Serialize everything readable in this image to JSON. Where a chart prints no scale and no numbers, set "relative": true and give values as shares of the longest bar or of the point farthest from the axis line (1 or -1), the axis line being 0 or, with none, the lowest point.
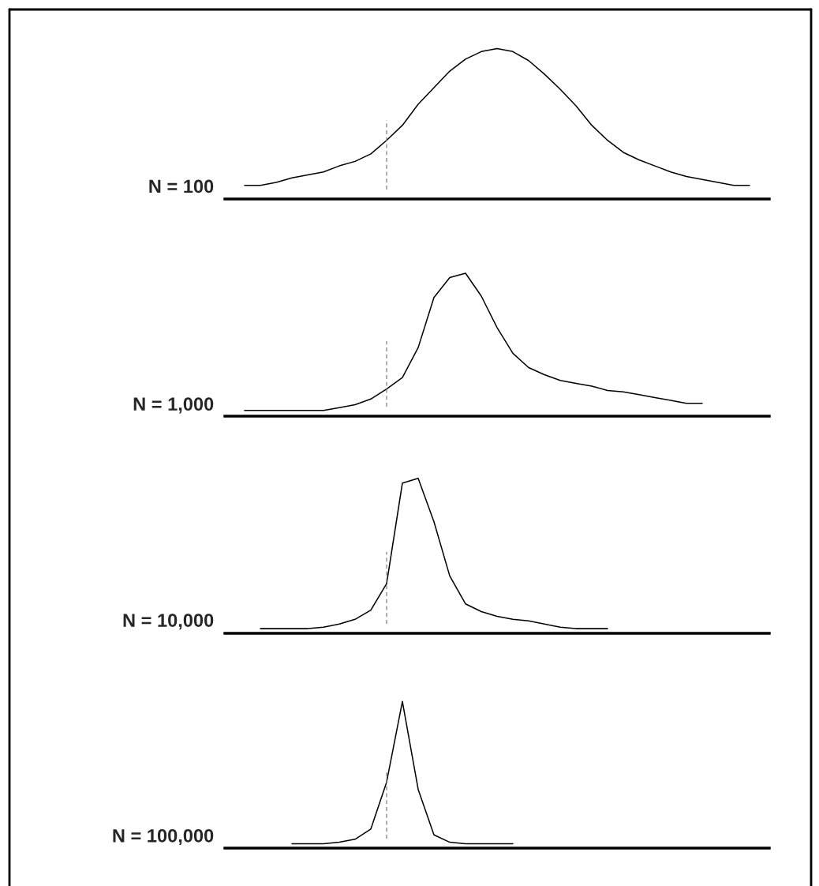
{
  "chart_data": [
    {
      "type": "line",
      "title": "N = 100",
      "relative": true,
      "grid": false,
      "legend": false,
      "categories": [
        null,
        null,
        null,
        null,
        null,
        null,
        null,
        null,
        null,
        null,
        null,
        null,
        null,
        null,
        null,
        null,
        null,
        null,
        null,
        null,
        null,
        null,
        null,
        null,
        null,
        null,
        null,
        null,
        null,
        null,
        null,
        null,
        null,
        null,
        null
      ],
      "series": [
        {
          "color": "#000000",
          "values": [
            null,
            0.09,
            0.09,
            0.11,
            0.14,
            0.16,
            0.18,
            0.22,
            0.25,
            0.3,
            0.39,
            0.49,
            0.63,
            0.74,
            0.85,
            0.93,
            0.98,
            1.0,
            0.98,
            0.92,
            0.83,
            0.73,
            0.62,
            0.49,
            0.39,
            0.31,
            0.26,
            0.22,
            0.18,
            0.15,
            0.13,
            0.11,
            0.09,
            0.09,
            null
          ]
        }
      ]
    },
    {
      "type": "line",
      "title": "N = 1,000",
      "relative": true,
      "grid": false,
      "legend": false,
      "categories": [
        null,
        null,
        null,
        null,
        null,
        null,
        null,
        null,
        null,
        null,
        null,
        null,
        null,
        null,
        null,
        null,
        null,
        null,
        null,
        null,
        null,
        null,
        null,
        null,
        null,
        null,
        null,
        null,
        null,
        null,
        null,
        null,
        null,
        null,
        null
      ],
      "series": [
        {
          "color": "#000000",
          "values": [
            null,
            0.04,
            0.04,
            0.04,
            0.04,
            0.04,
            0.04,
            0.06,
            0.08,
            0.12,
            0.19,
            0.27,
            0.48,
            0.83,
            0.97,
            1.0,
            0.84,
            0.62,
            0.44,
            0.34,
            0.29,
            0.25,
            0.23,
            0.21,
            0.18,
            0.17,
            0.15,
            0.13,
            0.11,
            0.09,
            0.09,
            null,
            null,
            null,
            null
          ]
        }
      ]
    },
    {
      "type": "line",
      "title": "N = 10,000",
      "relative": true,
      "grid": false,
      "legend": false,
      "categories": [
        null,
        null,
        null,
        null,
        null,
        null,
        null,
        null,
        null,
        null,
        null,
        null,
        null,
        null,
        null,
        null,
        null,
        null,
        null,
        null,
        null,
        null,
        null,
        null,
        null,
        null,
        null,
        null,
        null,
        null,
        null,
        null,
        null,
        null,
        null
      ],
      "series": [
        {
          "color": "#000000",
          "values": [
            null,
            null,
            0.03,
            0.03,
            0.03,
            0.03,
            0.04,
            0.06,
            0.09,
            0.15,
            0.32,
            0.97,
            1.0,
            0.72,
            0.37,
            0.19,
            0.14,
            0.11,
            0.09,
            0.08,
            0.06,
            0.04,
            0.03,
            0.03,
            0.03,
            null,
            null,
            null,
            null,
            null,
            null,
            null,
            null,
            null,
            null
          ]
        }
      ]
    },
    {
      "type": "line",
      "title": "N = 100,000",
      "relative": true,
      "grid": false,
      "legend": false,
      "categories": [
        null,
        null,
        null,
        null,
        null,
        null,
        null,
        null,
        null,
        null,
        null,
        null,
        null,
        null,
        null,
        null,
        null,
        null,
        null,
        null,
        null,
        null,
        null,
        null,
        null,
        null,
        null,
        null,
        null,
        null,
        null,
        null,
        null,
        null,
        null
      ],
      "series": [
        {
          "color": "#000000",
          "values": [
            null,
            null,
            null,
            null,
            0.03,
            0.03,
            0.03,
            0.04,
            0.06,
            0.13,
            0.45,
            1.0,
            0.4,
            0.09,
            0.04,
            0.03,
            0.03,
            0.03,
            0.03,
            null,
            null,
            null,
            null,
            null,
            null,
            null,
            null,
            null,
            null,
            null,
            null,
            null,
            null,
            null,
            null
          ]
        }
      ]
    }
  ]
}
